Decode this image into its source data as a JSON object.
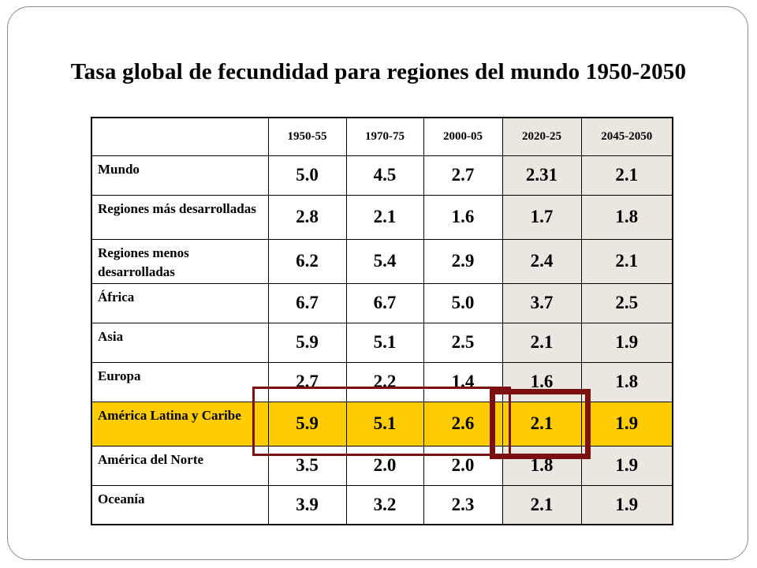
{
  "title": "Tasa global de fecundidad para regiones del mundo 1950-2050",
  "table": {
    "columns": [
      "",
      "1950-55",
      "1970-75",
      "2000-05",
      "2020-25",
      "2045-2050"
    ],
    "rows": [
      {
        "region": "Mundo",
        "values": [
          "5.0",
          "4.5",
          "2.7",
          "2.31",
          "2.1"
        ]
      },
      {
        "region": "Regiones más desarrolladas",
        "values": [
          "2.8",
          "2.1",
          "1.6",
          "1.7",
          "1.8"
        ]
      },
      {
        "region": "Regiones menos desarrolladas",
        "values": [
          "6.2",
          "5.4",
          "2.9",
          "2.4",
          "2.1"
        ]
      },
      {
        "region": "África",
        "values": [
          "6.7",
          "6.7",
          "5.0",
          "3.7",
          "2.5"
        ]
      },
      {
        "region": "Asia",
        "values": [
          "5.9",
          "5.1",
          "2.5",
          "2.1",
          "1.9"
        ]
      },
      {
        "region": "Europa",
        "values": [
          "2.7",
          "2.2",
          "1.4",
          "1.6",
          "1.8"
        ]
      },
      {
        "region": "América Latina y Caribe",
        "values": [
          "5.9",
          "5.1",
          "2.6",
          "2.1",
          "1.9"
        ]
      },
      {
        "region": "América del Norte",
        "values": [
          "3.5",
          "2.0",
          "2.0",
          "1.8",
          "1.9"
        ]
      },
      {
        "region": "Oceanía",
        "values": [
          "3.9",
          "3.2",
          "2.3",
          "2.1",
          "1.9"
        ]
      }
    ]
  },
  "colors": {
    "highlight_row": "#ffcc00",
    "shaded_columns": "#ebe6e0",
    "annotation_box": "#7a1010"
  }
}
